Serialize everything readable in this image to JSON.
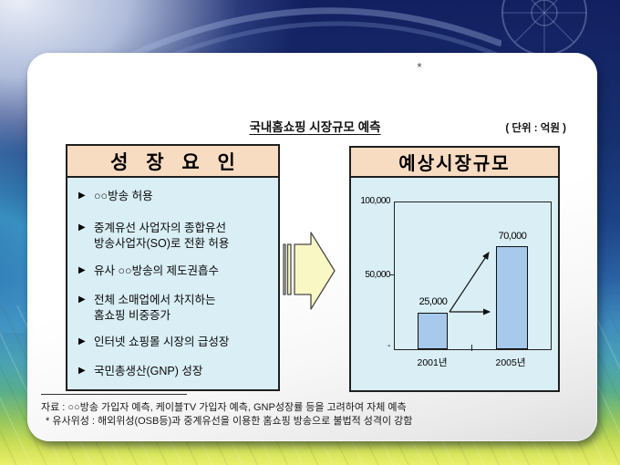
{
  "slide": {
    "corner_star": "*",
    "title": "국내홈쇼핑 시장규모 예측",
    "unit_label": "( 단위 : 억원 )",
    "growth_box": {
      "header": "성 장 요 인",
      "bullet_marker": "▶",
      "bullets": [
        {
          "l1": "○○방송 허용"
        },
        {
          "l1": "중계유선 사업자의 종합유선",
          "l2": "방송사업자(SO)로 전환 허용"
        },
        {
          "l1": "유사 ○○방송의 제도권흡수"
        },
        {
          "l1": "전체 소매업에서 차지하는",
          "l2": "홈쇼핑 비중증가"
        },
        {
          "l1": "인터넷 쇼핑몰 시장의 급성장"
        },
        {
          "l1": "국민총생산(GNP) 성장"
        }
      ]
    },
    "market_box": {
      "header": "예상시장규모"
    },
    "footnote_line1": "자료 : ○○방송 가입자 예측, 케이블TV 가입자 예측, GNP성장률 등을 고려하여 자체 예측",
    "footnote_line2": "* 유사위성 : 해외위성(OSB등)과 중계유선을 이용한 홈쇼핑 방송으로 불법적 성격이 강함"
  },
  "chart_data": {
    "type": "bar",
    "title": "예상시장규모",
    "xlabel": "",
    "ylabel": "단위: 억원",
    "categories": [
      "2001년",
      "2005년"
    ],
    "values": [
      25000,
      70000
    ],
    "value_labels": [
      "25,000",
      "70,000"
    ],
    "ylim": [
      0,
      100000
    ],
    "y_ticks": [
      {
        "value": 100000,
        "label": "100,000"
      },
      {
        "value": 50000,
        "label": "50,000"
      },
      {
        "value": 0,
        "label": "-"
      }
    ],
    "grid": false,
    "legend": false,
    "bar_color": "#a7c9ec",
    "annotations": [
      "diagonal arrow from 2001 bar top to 2005 bar top",
      "horizontal arrow from 2001 bar top to 2005 bar left edge"
    ]
  },
  "colors": {
    "header_fill": "#f8dcc2",
    "panel_fill": "#d9eef5",
    "bar_fill": "#a7c9ec",
    "flow_arrow_fill": "#f9f7c4",
    "box_border": "#1f1f1f",
    "bg_navy": "#16306f",
    "bg_yellow_green": "#d8e455"
  }
}
